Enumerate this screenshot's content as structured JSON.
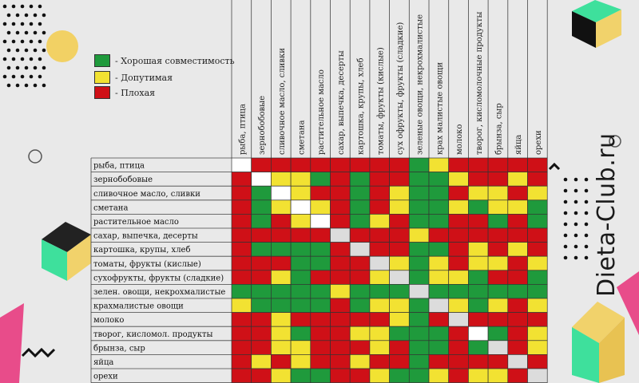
{
  "legend": {
    "good": {
      "label": "- Хорошая совместимость",
      "color": "#1f9a3c"
    },
    "ok": {
      "label": "- Допутимая",
      "color": "#f2e232"
    },
    "bad": {
      "label": "- Плохая",
      "color": "#cf1017"
    }
  },
  "watermark": "Dieta-Club.ru",
  "chart_data": {
    "type": "heatmap",
    "title": "",
    "value_codes": {
      "g": "Хорошая совместимость",
      "y": "Допутимая",
      "r": "Плохая",
      "w": "—"
    },
    "colors": {
      "g": "#1f9a3c",
      "y": "#f2e232",
      "r": "#cf1017",
      "w": "#ffffff",
      "d": "#dcdcdc"
    },
    "columns": [
      "рыба, птица",
      "зернобобовые",
      "сливочное масло, сливки",
      "сметана",
      "растительное масло",
      "сахар, выпечка, десерты",
      "картошка, крупы, хлеб",
      "томаты, фрукты (кислые)",
      "сух офрукты, фрукты (сладкие)",
      "зеленые овощи, некрохмалистые",
      "крах малистые овощи",
      "молоко",
      "творог, кисломолочные продукты",
      "брынза, сыр",
      "яйца",
      "орехи"
    ],
    "rows": [
      "рыба, птица",
      "зернобобовые",
      "сливочное масло, сливки",
      "сметана",
      "растительное масло",
      "сахар, выпечка, десерты",
      "картошка, крупы, хлеб",
      "томаты, фрукты (кислые)",
      "сухофрукты, фрукты (сладкие)",
      "зелен. овощи, некрохмалистые",
      "крахмалистые овощи",
      "молоко",
      "творог, кисломол. продукты",
      "брынза, сыр",
      "яйца",
      "орехи"
    ],
    "values": [
      [
        "w",
        "r",
        "r",
        "r",
        "r",
        "r",
        "r",
        "r",
        "r",
        "g",
        "y",
        "r",
        "r",
        "r",
        "r",
        "r"
      ],
      [
        "r",
        "w",
        "y",
        "y",
        "g",
        "r",
        "g",
        "r",
        "r",
        "g",
        "g",
        "y",
        "r",
        "r",
        "y",
        "r"
      ],
      [
        "r",
        "g",
        "w",
        "y",
        "r",
        "r",
        "g",
        "r",
        "y",
        "g",
        "g",
        "r",
        "y",
        "y",
        "r",
        "y"
      ],
      [
        "r",
        "g",
        "y",
        "w",
        "y",
        "r",
        "g",
        "r",
        "y",
        "g",
        "g",
        "y",
        "g",
        "y",
        "y",
        "g"
      ],
      [
        "r",
        "g",
        "r",
        "y",
        "w",
        "r",
        "g",
        "y",
        "r",
        "g",
        "g",
        "r",
        "r",
        "g",
        "r",
        "g"
      ],
      [
        "r",
        "r",
        "r",
        "r",
        "r",
        "d",
        "r",
        "r",
        "r",
        "y",
        "r",
        "r",
        "r",
        "r",
        "r",
        "r"
      ],
      [
        "r",
        "g",
        "g",
        "g",
        "g",
        "r",
        "d",
        "r",
        "r",
        "g",
        "g",
        "r",
        "y",
        "r",
        "y",
        "r"
      ],
      [
        "r",
        "r",
        "r",
        "g",
        "g",
        "r",
        "r",
        "d",
        "y",
        "g",
        "y",
        "r",
        "y",
        "y",
        "r",
        "y"
      ],
      [
        "r",
        "r",
        "y",
        "g",
        "r",
        "r",
        "r",
        "y",
        "d",
        "g",
        "y",
        "y",
        "g",
        "r",
        "r",
        "g"
      ],
      [
        "g",
        "g",
        "g",
        "g",
        "g",
        "y",
        "g",
        "g",
        "g",
        "d",
        "g",
        "g",
        "g",
        "g",
        "g",
        "g"
      ],
      [
        "y",
        "g",
        "g",
        "g",
        "g",
        "r",
        "g",
        "y",
        "y",
        "g",
        "d",
        "y",
        "g",
        "y",
        "r",
        "y"
      ],
      [
        "r",
        "r",
        "y",
        "r",
        "r",
        "r",
        "r",
        "r",
        "y",
        "g",
        "r",
        "d",
        "r",
        "r",
        "r",
        "r"
      ],
      [
        "r",
        "r",
        "y",
        "g",
        "r",
        "r",
        "y",
        "y",
        "g",
        "g",
        "g",
        "r",
        "w",
        "g",
        "r",
        "y"
      ],
      [
        "r",
        "r",
        "y",
        "y",
        "r",
        "r",
        "r",
        "y",
        "r",
        "g",
        "g",
        "r",
        "g",
        "d",
        "r",
        "y"
      ],
      [
        "r",
        "y",
        "r",
        "y",
        "r",
        "r",
        "y",
        "r",
        "r",
        "g",
        "r",
        "r",
        "r",
        "r",
        "d",
        "r"
      ],
      [
        "r",
        "r",
        "y",
        "g",
        "g",
        "r",
        "r",
        "y",
        "g",
        "g",
        "y",
        "r",
        "y",
        "y",
        "r",
        "d"
      ]
    ]
  }
}
